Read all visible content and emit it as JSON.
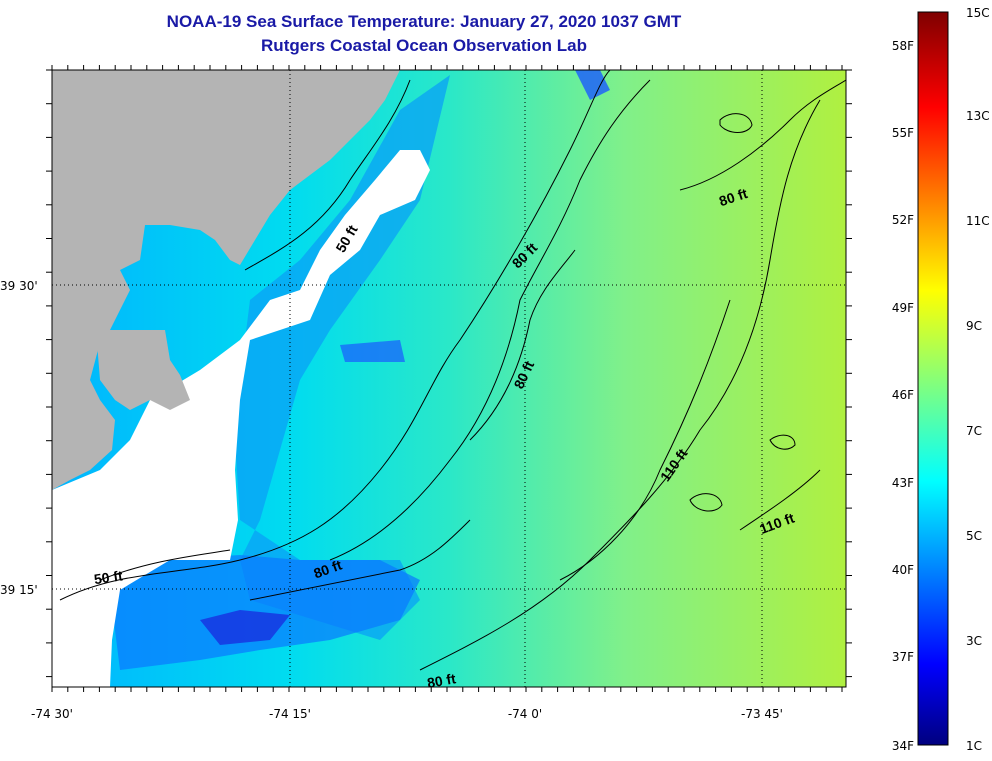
{
  "title_line1": "NOAA-19 Sea Surface Temperature:  January 27, 2020 1037 GMT",
  "title_line2": "Rutgers Coastal Ocean Observation Lab",
  "map": {
    "lat_labels": [
      "39 30'",
      "39 15'"
    ],
    "lon_labels": [
      "-74 30'",
      "-74 15'",
      "-74 0'",
      "-73 45'"
    ],
    "contour_labels": [
      "50 ft",
      "80 ft",
      "80 ft",
      "80 ft",
      "110 ft",
      "110 ft",
      "50 ft",
      "80 ft",
      "80 ft"
    ],
    "colors": {
      "land": "#b4b4b4",
      "no_data": "#ffffff",
      "contour": "#000000"
    }
  },
  "colorbar": {
    "fahrenheit_labels": [
      "58F",
      "55F",
      "52F",
      "49F",
      "46F",
      "43F",
      "40F",
      "37F",
      "34F"
    ],
    "celsius_labels": [
      "15C",
      "13C",
      "11C",
      "9C",
      "7C",
      "5C",
      "3C",
      "1C"
    ]
  }
}
